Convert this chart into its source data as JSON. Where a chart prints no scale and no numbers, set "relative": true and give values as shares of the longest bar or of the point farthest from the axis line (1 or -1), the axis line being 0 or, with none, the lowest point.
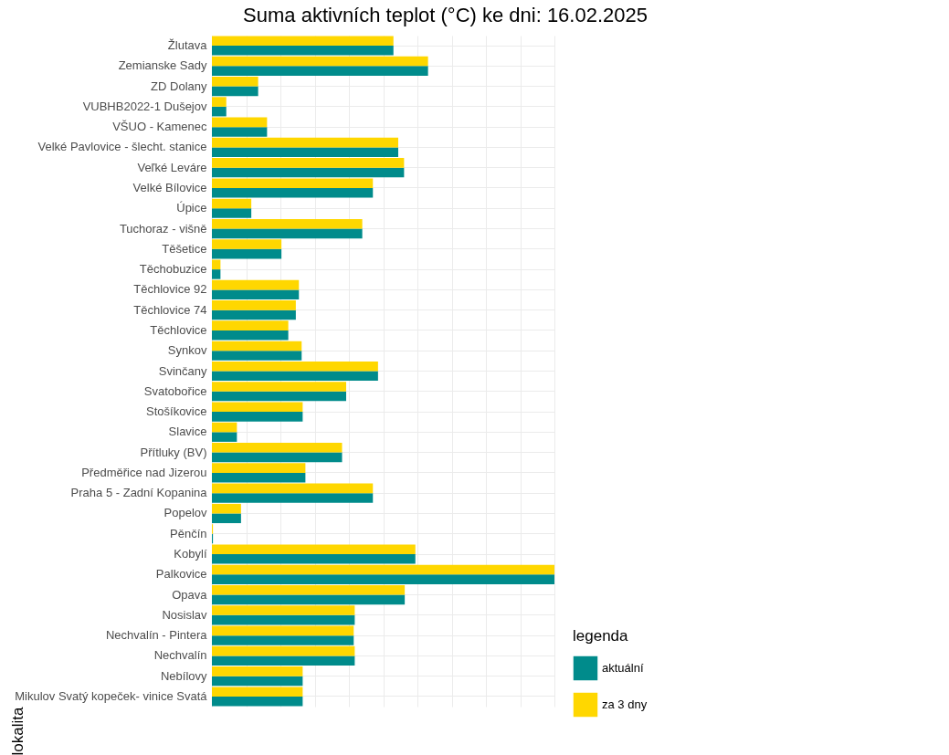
{
  "chart_data": {
    "type": "bar",
    "orientation": "horizontal",
    "relative": true,
    "title": "Suma aktivních teplot (°C) ke dni: 16.02.2025",
    "ylabel": "lokalita",
    "legend_title": "legenda",
    "legend": "bottom right",
    "grid": true,
    "categories": [
      "Žlutava",
      "Zemianske Sady",
      "ZD Dolany",
      "VUBHB2022-1 Dušejov",
      "VŠUO - Kamenec",
      "Velké Pavlovice - šlecht. stanice",
      "Veľké Leváre",
      "Velké Bílovice",
      "Úpice",
      "Tuchoraz - višně",
      "Těšetice",
      "Těchobuzice",
      "Těchlovice 92",
      "Těchlovice 74",
      "Těchlovice",
      "Synkov",
      "Svinčany",
      "Svatobořice",
      "Stošíkovice",
      "Slavice",
      "Přítluky (BV)",
      "Předměřice nad Jizerou",
      "Praha 5 - Zadní Kopanina",
      "Popelov",
      "Pěnčín",
      "Kobylí",
      "Palkovice",
      "Opava",
      "Nosislav",
      "Nechvalín - Pintera",
      "Nechvalín",
      "Nebílovy",
      "Mikulov Svatý kopeček- vinice Svatá"
    ],
    "series": [
      {
        "name": "aktuální",
        "color": "#008b8b",
        "values": [
          0.53,
          0.631,
          0.135,
          0.042,
          0.161,
          0.544,
          0.561,
          0.47,
          0.115,
          0.439,
          0.203,
          0.025,
          0.254,
          0.245,
          0.223,
          0.262,
          0.485,
          0.392,
          0.265,
          0.073,
          0.38,
          0.273,
          0.47,
          0.085,
          0.003,
          0.594,
          1,
          0.563,
          0.417,
          0.414,
          0.417,
          0.265,
          0.265
        ]
      },
      {
        "name": "za 3 dny",
        "color": "#ffd700",
        "values": [
          0.53,
          0.631,
          0.135,
          0.042,
          0.161,
          0.544,
          0.561,
          0.47,
          0.115,
          0.439,
          0.203,
          0.025,
          0.254,
          0.245,
          0.223,
          0.262,
          0.485,
          0.392,
          0.265,
          0.073,
          0.38,
          0.273,
          0.47,
          0.085,
          0.003,
          0.594,
          1,
          0.563,
          0.417,
          0.414,
          0.417,
          0.265,
          0.265
        ]
      }
    ]
  }
}
